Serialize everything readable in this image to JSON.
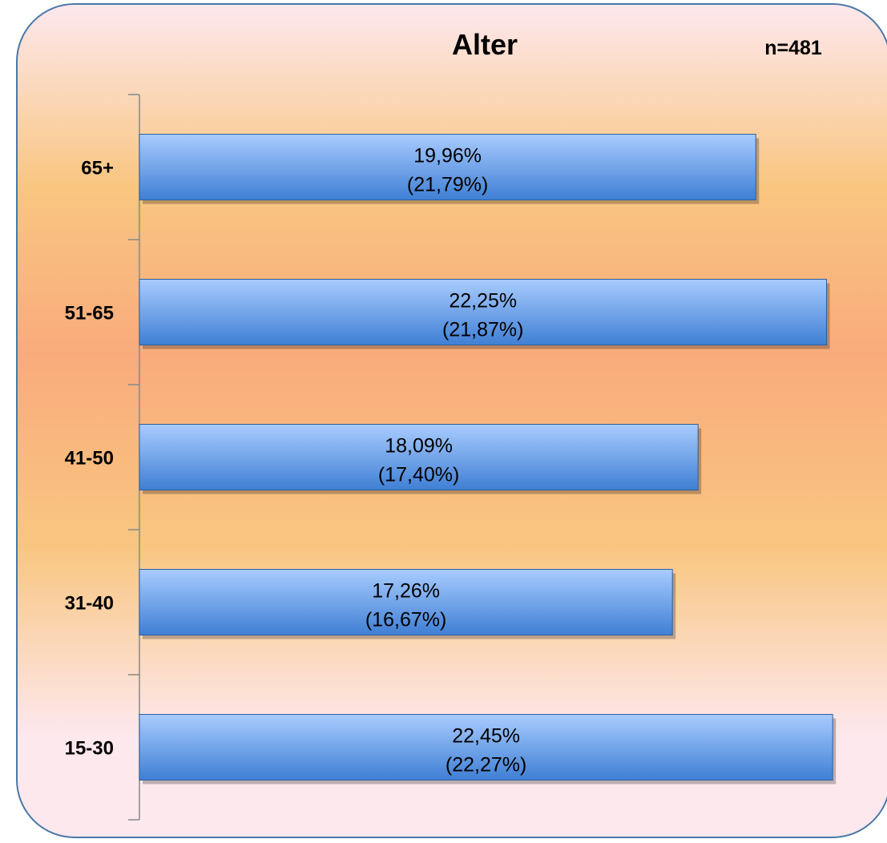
{
  "chart_data": {
    "type": "bar",
    "orientation": "horizontal",
    "title": "Alter",
    "sample_label": "n=481",
    "categories": [
      "65+",
      "51-65",
      "41-50",
      "31-40",
      "15-30"
    ],
    "values": [
      19.96,
      22.25,
      18.09,
      17.26,
      22.45
    ],
    "comparison_values": [
      21.79,
      21.87,
      17.4,
      16.67,
      22.27
    ],
    "value_labels": [
      "19,96%",
      "22,25%",
      "18,09%",
      "17,26%",
      "22,45%"
    ],
    "comparison_labels": [
      "(21,79%)",
      "(21,87%)",
      "(17,40%)",
      "(16,67%)",
      "(22,27%)"
    ],
    "xlim": [
      0,
      22.6
    ],
    "grid": false,
    "legend": "none",
    "colors": {
      "bar_top": "#a9ccff",
      "bar_bottom": "#3f7fd4",
      "bar_edge": "#2e5f9f",
      "panel_border": "#4a78a8",
      "background_top": "#fde8ee",
      "background_mid": "#f9ab7c",
      "background_lower": "#f9c680"
    }
  }
}
